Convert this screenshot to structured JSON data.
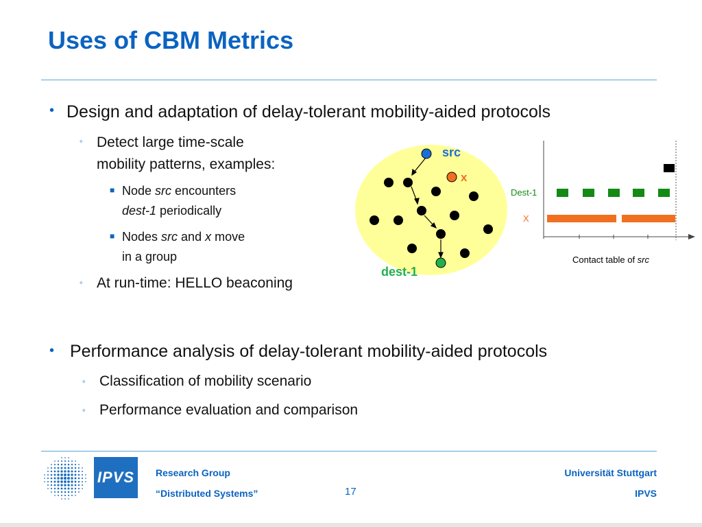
{
  "slide": {
    "title": "Uses of CBM Metrics",
    "page_number": "17"
  },
  "section1": {
    "heading": "Design and adaptation of delay-tolerant mobility-aided protocols",
    "sub1_line1": "Detect large time-scale",
    "sub1_line2": "mobility patterns, examples:",
    "ex1": {
      "a": "Node ",
      "b": "src",
      "c": " encounters",
      "d": "dest-1",
      "e": " periodically"
    },
    "ex2": {
      "a": "Nodes ",
      "b": "src",
      "c": " and ",
      "d": "x",
      "e": " move",
      "f": "in a group"
    },
    "sub2": "At run-time: HELLO beaconing"
  },
  "section2": {
    "heading": "Performance analysis of delay-tolerant mobility-aided protocols",
    "sub1": "Classification of mobility scenario",
    "sub2": "Performance evaluation and comparison"
  },
  "figure": {
    "src_label": "src",
    "x_label": "x",
    "dest_label": "dest-1",
    "row_dest_label": "Dest-1",
    "row_x_label": "X",
    "caption_a": "Contact table of ",
    "caption_b": "src",
    "colors": {
      "src": "#1a6fd6",
      "x": "#f07020",
      "dest": "#22b04b",
      "dest_bars": "#138a13",
      "x_bars": "#f07020",
      "circle": "#ffff99"
    }
  },
  "footer": {
    "logo_text": "IPVS",
    "group_line1": "Research Group",
    "group_line2": "“Distributed Systems”",
    "uni": "Universität Stuttgart",
    "inst": "IPVS"
  }
}
